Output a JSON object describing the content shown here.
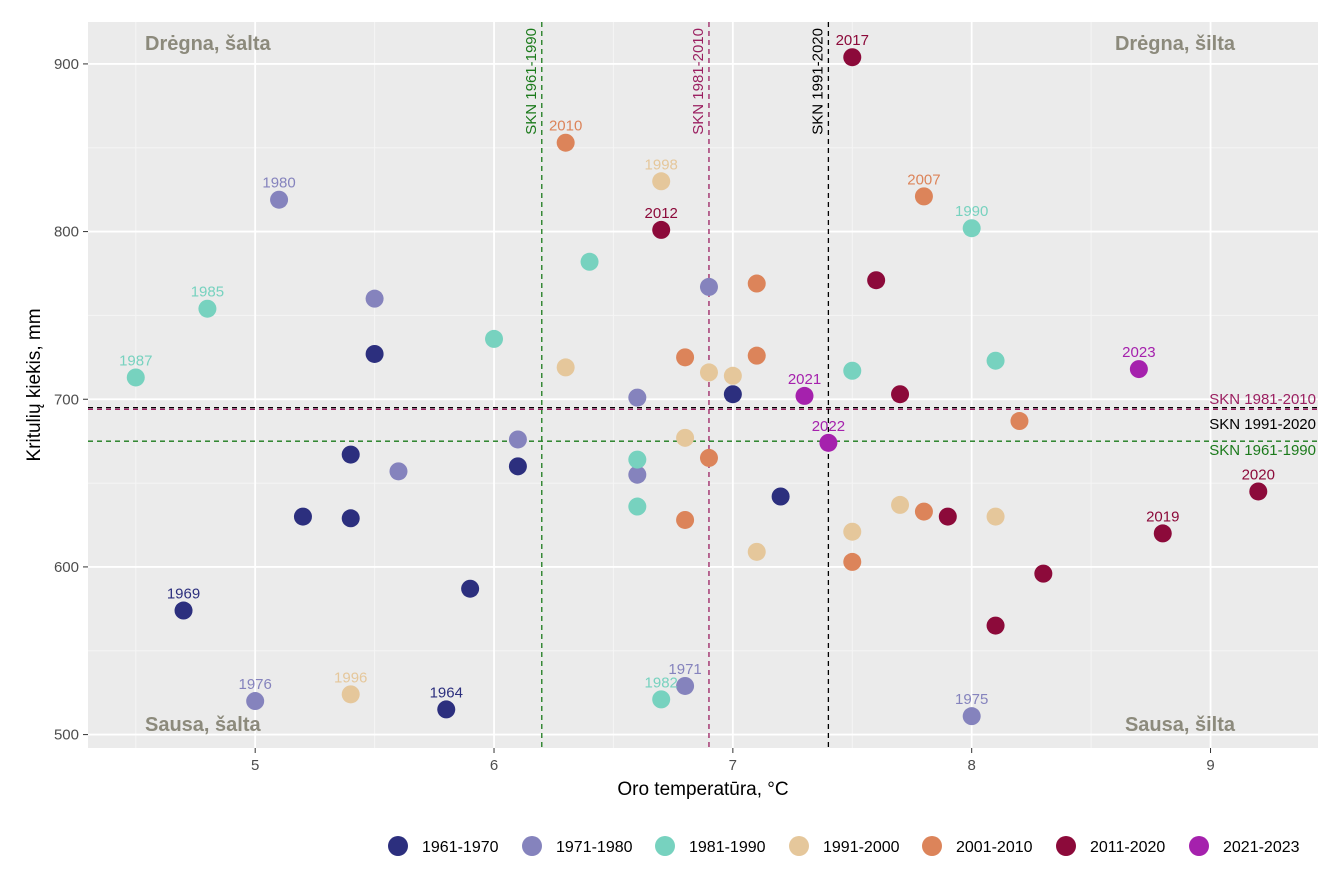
{
  "chart_data": {
    "type": "scatter",
    "title": "",
    "xlabel": "Oro temperatūra, °C",
    "ylabel": "Kritulių kiekis, mm",
    "xlim": [
      4.3,
      9.45
    ],
    "ylim": [
      492,
      925
    ],
    "xticks": [
      5,
      6,
      7,
      8,
      9
    ],
    "yticks": [
      500,
      600,
      700,
      800,
      900
    ],
    "grid": true,
    "legend_position": "bottom",
    "quadrant_labels": {
      "top_left": "Drėgna, šalta",
      "top_right": "Drėgna, šilta",
      "bottom_left": "Sausa, šalta",
      "bottom_right": "Sausa, šilta"
    },
    "reference_lines": [
      {
        "name": "SKN 1961-1990",
        "x": 6.2,
        "y": 675,
        "color": "#1b7a1b"
      },
      {
        "name": "SKN 1981-2010",
        "x": 6.9,
        "y": 694,
        "color": "#9b2061"
      },
      {
        "name": "SKN 1991-2020",
        "x": 7.4,
        "y": 695,
        "color": "#000000"
      }
    ],
    "series": [
      {
        "name": "1961-1970",
        "color": "#2c2f7e",
        "points": [
          {
            "x": 4.7,
            "y": 574,
            "label": "1969"
          },
          {
            "x": 5.2,
            "y": 630
          },
          {
            "x": 5.4,
            "y": 629
          },
          {
            "x": 5.4,
            "y": 667
          },
          {
            "x": 5.5,
            "y": 727
          },
          {
            "x": 5.8,
            "y": 515,
            "label": "1964"
          },
          {
            "x": 5.9,
            "y": 587
          },
          {
            "x": 6.1,
            "y": 660
          },
          {
            "x": 7.0,
            "y": 703
          },
          {
            "x": 7.2,
            "y": 642
          }
        ]
      },
      {
        "name": "1971-1980",
        "color": "#8583bd",
        "points": [
          {
            "x": 5.0,
            "y": 520,
            "label": "1976"
          },
          {
            "x": 5.1,
            "y": 819,
            "label": "1980"
          },
          {
            "x": 5.5,
            "y": 760
          },
          {
            "x": 5.6,
            "y": 657
          },
          {
            "x": 6.1,
            "y": 676
          },
          {
            "x": 6.6,
            "y": 701
          },
          {
            "x": 6.6,
            "y": 655
          },
          {
            "x": 6.8,
            "y": 529,
            "label": "1971"
          },
          {
            "x": 6.9,
            "y": 767
          },
          {
            "x": 8.0,
            "y": 511,
            "label": "1975"
          }
        ]
      },
      {
        "name": "1981-1990",
        "color": "#77d2bf",
        "points": [
          {
            "x": 4.5,
            "y": 713,
            "label": "1987"
          },
          {
            "x": 4.8,
            "y": 754,
            "label": "1985"
          },
          {
            "x": 6.0,
            "y": 736
          },
          {
            "x": 6.4,
            "y": 782
          },
          {
            "x": 6.6,
            "y": 664
          },
          {
            "x": 6.6,
            "y": 636
          },
          {
            "x": 6.7,
            "y": 521,
            "label": "1982"
          },
          {
            "x": 7.5,
            "y": 717
          },
          {
            "x": 8.0,
            "y": 802,
            "label": "1990"
          },
          {
            "x": 8.1,
            "y": 723
          }
        ]
      },
      {
        "name": "1991-2000",
        "color": "#e5c79b",
        "points": [
          {
            "x": 5.4,
            "y": 524,
            "label": "1996"
          },
          {
            "x": 6.3,
            "y": 719
          },
          {
            "x": 6.7,
            "y": 830,
            "label": "1998"
          },
          {
            "x": 6.8,
            "y": 677
          },
          {
            "x": 6.9,
            "y": 716
          },
          {
            "x": 7.0,
            "y": 714
          },
          {
            "x": 7.1,
            "y": 609
          },
          {
            "x": 7.5,
            "y": 621
          },
          {
            "x": 7.7,
            "y": 637
          },
          {
            "x": 8.1,
            "y": 630
          }
        ]
      },
      {
        "name": "2001-2010",
        "color": "#dc845a",
        "points": [
          {
            "x": 6.3,
            "y": 853,
            "label": "2010"
          },
          {
            "x": 6.8,
            "y": 725
          },
          {
            "x": 6.8,
            "y": 628
          },
          {
            "x": 6.9,
            "y": 665
          },
          {
            "x": 7.1,
            "y": 769
          },
          {
            "x": 7.1,
            "y": 726
          },
          {
            "x": 7.5,
            "y": 603
          },
          {
            "x": 7.8,
            "y": 821,
            "label": "2007"
          },
          {
            "x": 7.8,
            "y": 633
          },
          {
            "x": 8.2,
            "y": 687
          }
        ]
      },
      {
        "name": "2011-2020",
        "color": "#8c0a3a",
        "points": [
          {
            "x": 6.7,
            "y": 801,
            "label": "2012"
          },
          {
            "x": 7.5,
            "y": 904,
            "label": "2017"
          },
          {
            "x": 7.6,
            "y": 771
          },
          {
            "x": 7.7,
            "y": 703
          },
          {
            "x": 7.9,
            "y": 630
          },
          {
            "x": 8.1,
            "y": 565
          },
          {
            "x": 8.3,
            "y": 596
          },
          {
            "x": 8.8,
            "y": 620,
            "label": "2019"
          },
          {
            "x": 9.2,
            "y": 645,
            "label": "2020"
          }
        ]
      },
      {
        "name": "2021-2023",
        "color": "#a521ad",
        "points": [
          {
            "x": 7.3,
            "y": 702,
            "label": "2021"
          },
          {
            "x": 7.4,
            "y": 674,
            "label": "2022"
          },
          {
            "x": 8.7,
            "y": 718,
            "label": "2023"
          }
        ]
      }
    ]
  }
}
